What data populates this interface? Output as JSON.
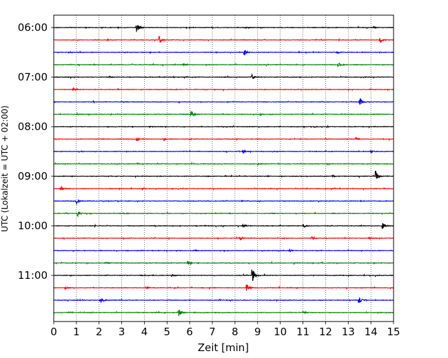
{
  "chart_data": {
    "type": "line",
    "title": "",
    "xlabel": "Zeit  [min]",
    "ylabel": "UTC (Lokalzeit = UTC + 02:00)",
    "xlim": [
      0,
      15
    ],
    "x_ticks": [
      "0",
      "1",
      "2",
      "3",
      "4",
      "5",
      "6",
      "7",
      "8",
      "9",
      "10",
      "11",
      "12",
      "13",
      "14",
      "15"
    ],
    "y_ticks": [
      "06:00",
      "07:00",
      "08:00",
      "09:00",
      "10:00",
      "11:00"
    ],
    "grid": "vertical-dotted",
    "color_cycle": [
      "#000000",
      "#ff0000",
      "#0000ff",
      "#008000"
    ],
    "traces": [
      {
        "start": "06:00",
        "events": [
          [
            3.65,
            8.0
          ],
          [
            14.1,
            1.5
          ],
          [
            8.45,
            0.8
          ]
        ]
      },
      {
        "start": "06:15",
        "events": [
          [
            4.65,
            6.5
          ],
          [
            14.4,
            4.0
          ],
          [
            2.35,
            1.2
          ]
        ]
      },
      {
        "start": "06:30",
        "events": [
          [
            8.4,
            5.5
          ],
          [
            12.5,
            2.0
          ],
          [
            1.1,
            1.0
          ]
        ]
      },
      {
        "start": "06:45",
        "events": [
          [
            12.55,
            4.0
          ],
          [
            5.7,
            1.0
          ]
        ]
      },
      {
        "start": "07:00",
        "events": [
          [
            8.75,
            4.0
          ],
          [
            2.45,
            1.5
          ]
        ]
      },
      {
        "start": "07:15",
        "events": [
          [
            0.85,
            3.0
          ],
          [
            5.3,
            1.2
          ]
        ]
      },
      {
        "start": "07:30",
        "events": [
          [
            13.5,
            7.0
          ],
          [
            3.0,
            1.0
          ]
        ]
      },
      {
        "start": "07:45",
        "events": [
          [
            6.05,
            7.5
          ],
          [
            1.0,
            1.5
          ],
          [
            9.1,
            1.2
          ]
        ]
      },
      {
        "start": "08:00",
        "events": [
          [
            4.25,
            1.2
          ],
          [
            11.5,
            1.0
          ]
        ]
      },
      {
        "start": "08:15",
        "events": [
          [
            3.65,
            3.5
          ],
          [
            4.85,
            2.0
          ],
          [
            13.3,
            2.0
          ]
        ]
      },
      {
        "start": "08:30",
        "events": [
          [
            8.35,
            3.0
          ],
          [
            14.0,
            2.5
          ]
        ]
      },
      {
        "start": "08:45",
        "events": [
          [
            9.0,
            1.5
          ]
        ]
      },
      {
        "start": "09:00",
        "events": [
          [
            14.2,
            10.0
          ],
          [
            12.3,
            1.5
          ]
        ]
      },
      {
        "start": "09:15",
        "events": [
          [
            0.3,
            4.5
          ],
          [
            3.9,
            1.0
          ]
        ]
      },
      {
        "start": "09:30",
        "events": [
          [
            1.0,
            5.0
          ],
          [
            8.3,
            1.0
          ]
        ]
      },
      {
        "start": "09:45",
        "events": [
          [
            1.05,
            4.5
          ],
          [
            3.1,
            1.2
          ]
        ]
      },
      {
        "start": "10:00",
        "events": [
          [
            14.5,
            5.0
          ],
          [
            8.35,
            3.0
          ],
          [
            11.0,
            3.0
          ]
        ]
      },
      {
        "start": "10:15",
        "events": [
          [
            8.2,
            3.0
          ],
          [
            11.4,
            3.5
          ],
          [
            13.9,
            2.0
          ]
        ]
      },
      {
        "start": "10:30",
        "events": [
          [
            10.4,
            2.0
          ],
          [
            6.2,
            1.0
          ]
        ]
      },
      {
        "start": "10:45",
        "events": [
          [
            5.9,
            3.0
          ],
          [
            2.3,
            1.2
          ]
        ]
      },
      {
        "start": "11:00",
        "events": [
          [
            8.75,
            14.0
          ],
          [
            5.2,
            2.0
          ]
        ]
      },
      {
        "start": "11:15",
        "events": [
          [
            8.5,
            6.5
          ],
          [
            0.5,
            2.0
          ],
          [
            4.1,
            1.5
          ]
        ]
      },
      {
        "start": "11:30",
        "events": [
          [
            2.05,
            7.0
          ],
          [
            13.45,
            6.0
          ],
          [
            7.3,
            1.2
          ]
        ]
      },
      {
        "start": "11:45",
        "events": [
          [
            5.5,
            7.0
          ],
          [
            11.0,
            1.5
          ]
        ]
      }
    ]
  }
}
